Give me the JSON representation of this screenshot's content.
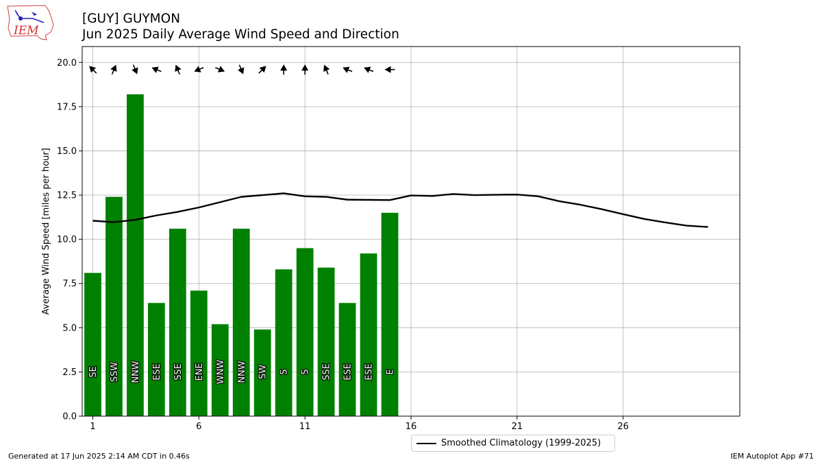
{
  "logo": {
    "text": "IEM",
    "name": "iem-logo"
  },
  "header": {
    "title_line1": "[GUY] GUYMON",
    "title_line2": "Jun 2025 Daily Average Wind Speed and Direction"
  },
  "footer": {
    "left": "Generated at 17 Jun 2025 2:14 AM CDT in 0.46s",
    "right": "IEM Autoplot App #71"
  },
  "legend": {
    "climatology_label": "Smoothed Climatology (1999-2025)"
  },
  "colors": {
    "bar": "#008000",
    "climatology_line": "#000000",
    "grid": "#b0b0b0"
  },
  "chart_data": {
    "type": "bar",
    "title": "[GUY] GUYMON / Jun 2025 Daily Average Wind Speed and Direction",
    "xlabel": "",
    "ylabel": "Average Wind Speed [miles per hour]",
    "xlim": [
      0.5,
      31.5
    ],
    "ylim": [
      0,
      20.9
    ],
    "xticks": [
      1,
      6,
      11,
      16,
      21,
      26
    ],
    "yticks": [
      0.0,
      2.5,
      5.0,
      7.5,
      10.0,
      12.5,
      15.0,
      17.5,
      20.0
    ],
    "grid": true,
    "legend_position": "below-center",
    "series": [
      {
        "type": "bar",
        "days": [
          1,
          2,
          3,
          4,
          5,
          6,
          7,
          8,
          9,
          10,
          11,
          12,
          13,
          14,
          15
        ],
        "values": [
          8.1,
          12.4,
          18.2,
          6.4,
          10.6,
          7.1,
          5.2,
          10.6,
          4.9,
          8.3,
          9.5,
          8.4,
          6.4,
          9.2,
          11.5
        ],
        "directions": [
          "SE",
          "SSW",
          "NNW",
          "ESE",
          "SSE",
          "ENE",
          "WNW",
          "NNW",
          "SW",
          "S",
          "S",
          "SSE",
          "ESE",
          "ESE",
          "E"
        ]
      },
      {
        "type": "line",
        "name": "Smoothed Climatology (1999-2025)",
        "days": [
          1,
          2,
          3,
          4,
          5,
          6,
          7,
          8,
          9,
          10,
          11,
          12,
          13,
          14,
          15,
          16,
          17,
          18,
          19,
          20,
          21,
          22,
          23,
          24,
          25,
          26,
          27,
          28,
          29,
          30
        ],
        "values": [
          11.05,
          10.97,
          11.1,
          11.35,
          11.55,
          11.8,
          12.1,
          12.4,
          12.5,
          12.6,
          12.43,
          12.4,
          12.24,
          12.23,
          12.22,
          12.48,
          12.45,
          12.56,
          12.5,
          12.52,
          12.53,
          12.43,
          12.15,
          11.95,
          11.7,
          11.42,
          11.15,
          10.95,
          10.77,
          10.7
        ]
      }
    ]
  }
}
